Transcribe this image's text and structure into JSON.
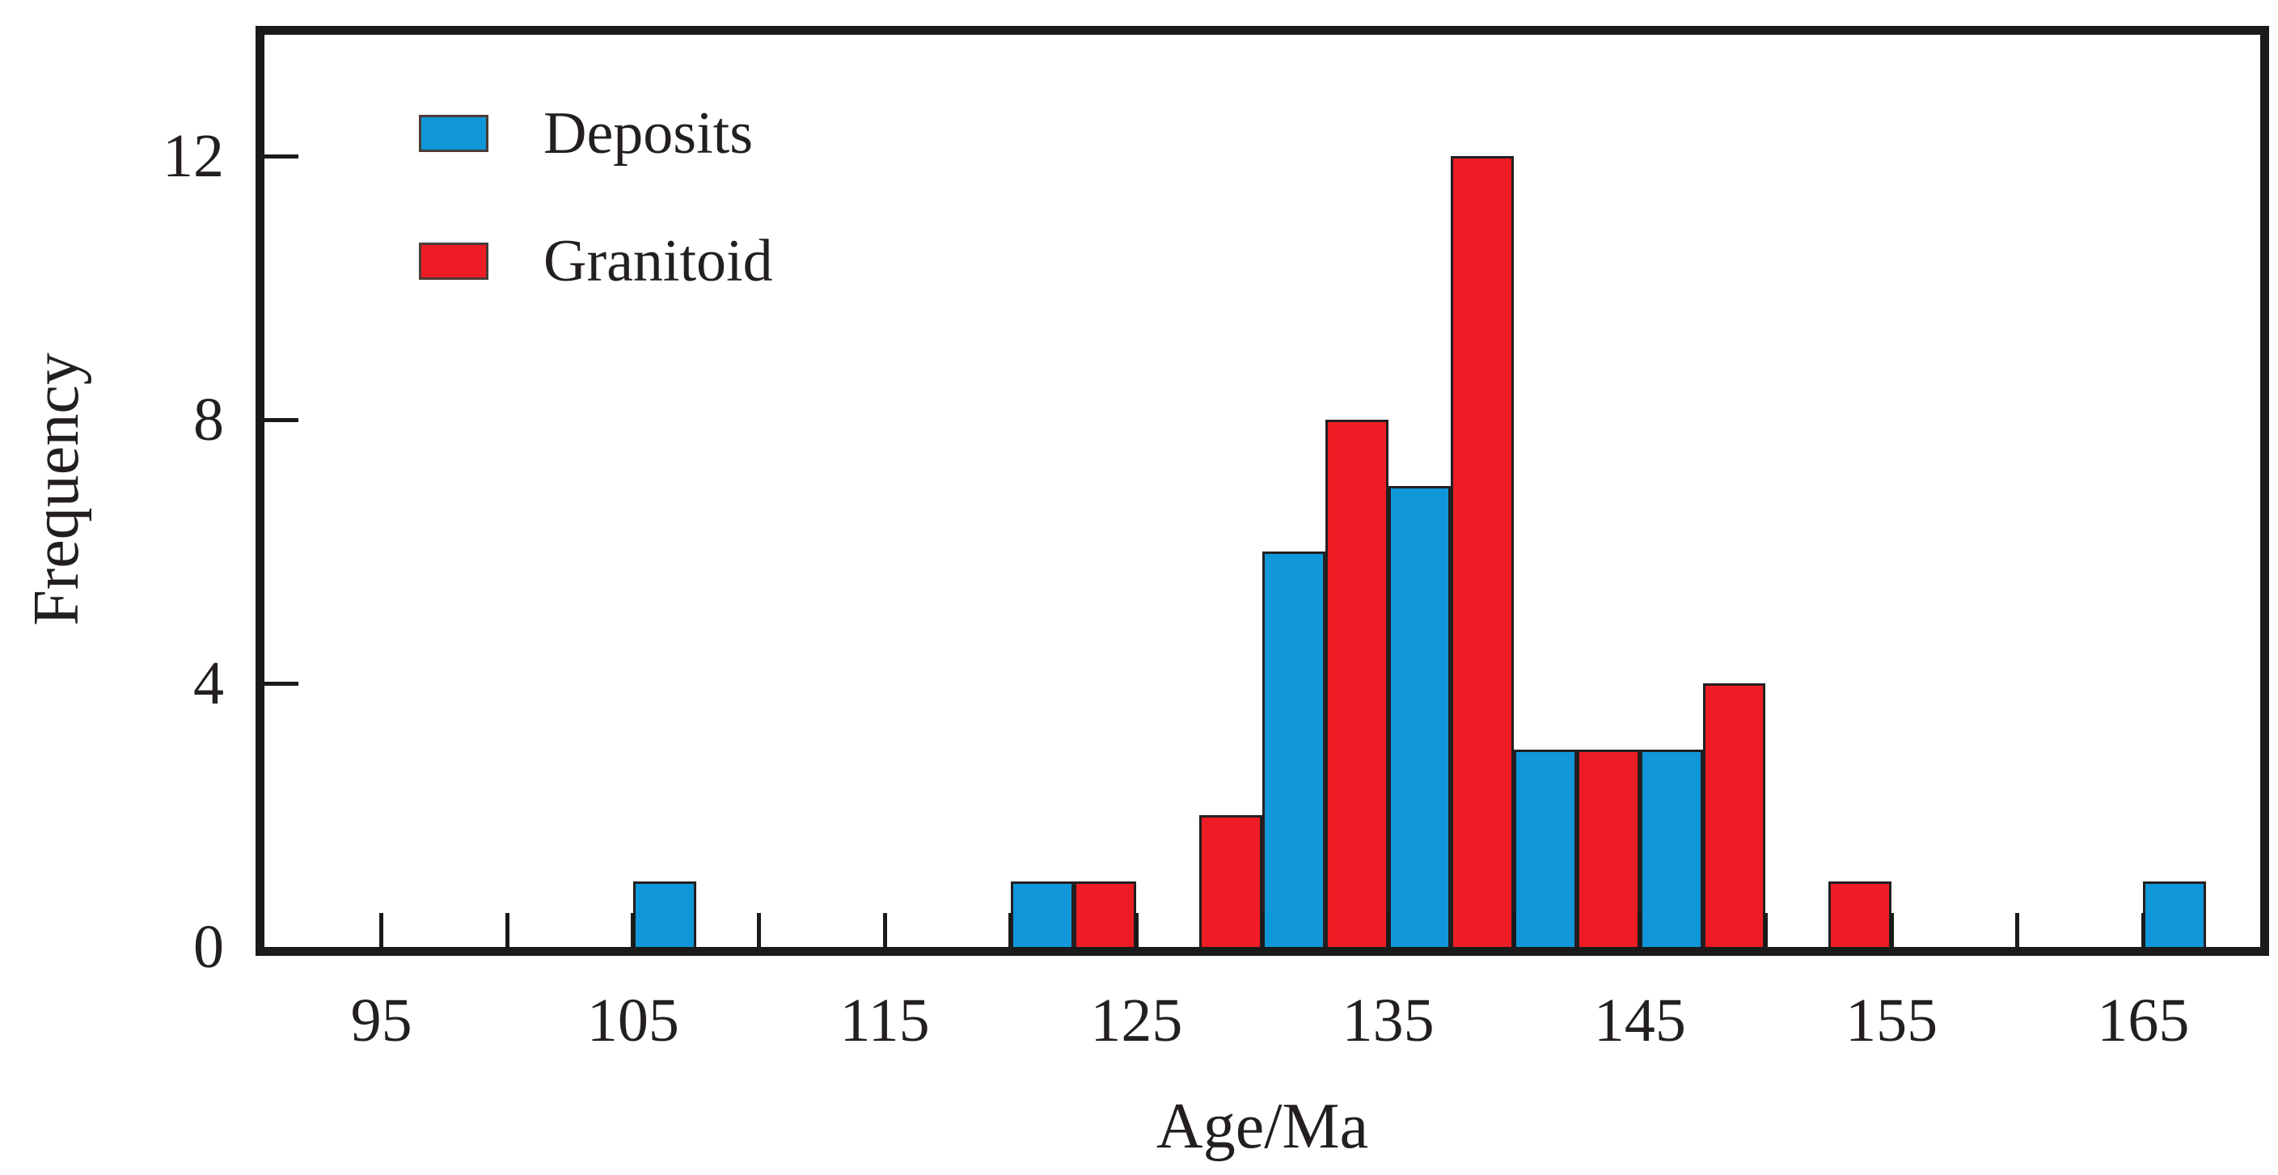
{
  "chart_data": {
    "type": "bar",
    "subtype": "grouped-histogram",
    "title": "",
    "xlabel": "Age/Ma",
    "ylabel": "Frequency",
    "xlim": [
      90,
      170
    ],
    "ylim": [
      0,
      13.84
    ],
    "grid": false,
    "legend_position": "top-left",
    "bin_width_ma": 2.5,
    "axis_color": "#1a1a1a",
    "x_ticks_all": [
      95,
      100,
      105,
      110,
      115,
      120,
      125,
      130,
      135,
      140,
      145,
      150,
      155,
      160,
      165
    ],
    "x_ticks_labeled": [
      {
        "value": 95,
        "label": "95"
      },
      {
        "value": 105,
        "label": "105"
      },
      {
        "value": 115,
        "label": "115"
      },
      {
        "value": 125,
        "label": "125"
      },
      {
        "value": 135,
        "label": "135"
      },
      {
        "value": 145,
        "label": "145"
      },
      {
        "value": 155,
        "label": "155"
      },
      {
        "value": 165,
        "label": "165"
      }
    ],
    "y_ticks": [
      {
        "value": 0,
        "label": "0"
      },
      {
        "value": 4,
        "label": "4"
      },
      {
        "value": 8,
        "label": "8"
      },
      {
        "value": 12,
        "label": "12"
      }
    ],
    "series": [
      {
        "name": "Deposits",
        "color": "#1097d9",
        "bars": [
          {
            "x_start": 105,
            "x_end": 107.5,
            "count": 1
          },
          {
            "x_start": 120,
            "x_end": 122.5,
            "count": 1
          },
          {
            "x_start": 130,
            "x_end": 132.5,
            "count": 6
          },
          {
            "x_start": 135,
            "x_end": 137.5,
            "count": 7
          },
          {
            "x_start": 140,
            "x_end": 142.5,
            "count": 3
          },
          {
            "x_start": 145,
            "x_end": 147.5,
            "count": 3
          },
          {
            "x_start": 165,
            "x_end": 167.5,
            "count": 1
          }
        ]
      },
      {
        "name": "Granitoid",
        "color": "#ee1c24",
        "bars": [
          {
            "x_start": 122.5,
            "x_end": 125,
            "count": 1
          },
          {
            "x_start": 127.5,
            "x_end": 130,
            "count": 2
          },
          {
            "x_start": 132.5,
            "x_end": 135,
            "count": 8
          },
          {
            "x_start": 137.5,
            "x_end": 140,
            "count": 12
          },
          {
            "x_start": 142.5,
            "x_end": 145,
            "count": 3
          },
          {
            "x_start": 147.5,
            "x_end": 150,
            "count": 4
          },
          {
            "x_start": 152.5,
            "x_end": 155,
            "count": 1
          }
        ]
      }
    ]
  }
}
